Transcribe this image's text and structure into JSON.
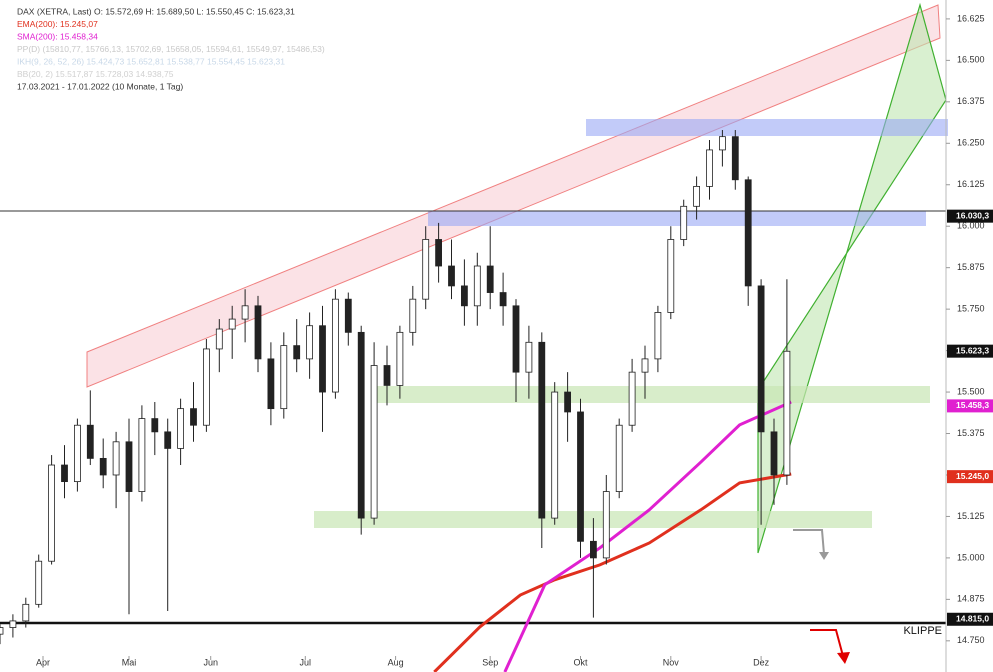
{
  "chart_data": {
    "type": "candlestick",
    "header": [
      {
        "text": "DAX (XETRA, Last)  O: 15.572,69  H: 15.689,50  L: 15.550,45  C: 15.623,31",
        "color": "#333333"
      },
      {
        "text": "EMA(200): 15.245,07",
        "color": "#e0301e"
      },
      {
        "text": "SMA(200): 15.458,34",
        "color": "#e020d0"
      },
      {
        "text": "PP(D) (15810,77, 15766,13, 15702,69, 15658,05, 15594,61, 15549,97, 15486,53)",
        "color": "#c8c8c8"
      },
      {
        "text": "IKH(9, 26, 52, 26) 15.424,73  15.652,81  15.538,77  15.554,45  15.623,31",
        "color": "#c8d8e8"
      },
      {
        "text": "BB(20, 2) 15.517,87  15.728,03  14.938,75",
        "color": "#d0d0d0"
      },
      {
        "text": "17.03.2021 - 17.01.2022 (10 Monate, 1 Tag)",
        "color": "#333333"
      }
    ],
    "x": [
      0,
      3,
      6,
      9,
      12,
      15,
      18,
      21,
      24,
      27,
      30,
      33,
      36,
      39,
      42,
      45,
      48,
      51,
      54,
      57,
      60,
      63,
      66,
      69,
      72,
      75,
      78,
      81,
      84,
      87,
      90,
      93,
      96,
      99,
      102,
      105,
      108,
      111,
      114,
      117,
      120,
      123,
      126,
      129,
      132,
      135,
      138,
      141,
      144,
      147,
      150,
      153,
      156,
      159,
      162,
      165,
      168,
      171,
      174,
      177,
      180,
      183
    ],
    "open": [
      14770,
      14790,
      14810,
      14860,
      14990,
      15280,
      15230,
      15400,
      15300,
      15250,
      15350,
      15200,
      15420,
      15380,
      15330,
      15450,
      15400,
      15630,
      15690,
      15720,
      15760,
      15600,
      15450,
      15640,
      15600,
      15700,
      15500,
      15780,
      15680,
      15120,
      15580,
      15520,
      15680,
      15780,
      15960,
      15880,
      15820,
      15760,
      15880,
      15800,
      15760,
      15560,
      15650,
      15120,
      15500,
      15440,
      15050,
      15000,
      15200,
      15400,
      15560,
      15600,
      15740,
      15960,
      16060,
      16120,
      16230,
      16270,
      16140,
      15820,
      15380,
      15250
    ],
    "high": [
      14800,
      14830,
      14880,
      15010,
      15310,
      15340,
      15420,
      15505,
      15360,
      15380,
      15420,
      15460,
      15470,
      15420,
      15480,
      15530,
      15660,
      15720,
      15760,
      15810,
      15790,
      15650,
      15680,
      15720,
      15740,
      15760,
      15810,
      15800,
      15700,
      15650,
      15640,
      15700,
      15820,
      16000,
      16010,
      15960,
      15900,
      15920,
      16000,
      15860,
      15780,
      15700,
      15680,
      15530,
      15560,
      15480,
      15120,
      15250,
      15420,
      15600,
      15640,
      15760,
      16000,
      16080,
      16150,
      16260,
      16290,
      16290,
      16150,
      15840,
      15420,
      15840
    ],
    "low": [
      14740,
      14760,
      14790,
      14850,
      14980,
      15180,
      15200,
      15280,
      15210,
      15150,
      14830,
      15170,
      15310,
      14840,
      15280,
      15350,
      15380,
      15560,
      15600,
      15650,
      15560,
      15400,
      15420,
      15560,
      15540,
      15380,
      15480,
      15640,
      15070,
      15100,
      15460,
      15480,
      15640,
      15750,
      15830,
      15780,
      15700,
      15700,
      15750,
      15700,
      15470,
      15480,
      15030,
      15100,
      15350,
      15000,
      14820,
      14980,
      15180,
      15380,
      15480,
      15560,
      15720,
      15940,
      16020,
      16080,
      16180,
      16110,
      15760,
      15100,
      15160,
      15220
    ],
    "close": [
      14790,
      14810,
      14860,
      14990,
      15280,
      15230,
      15400,
      15300,
      15250,
      15350,
      15200,
      15420,
      15380,
      15330,
      15450,
      15400,
      15630,
      15690,
      15720,
      15760,
      15600,
      15450,
      15640,
      15600,
      15700,
      15500,
      15780,
      15680,
      15120,
      15580,
      15520,
      15680,
      15780,
      15960,
      15880,
      15820,
      15760,
      15880,
      15800,
      15760,
      15560,
      15650,
      15120,
      15500,
      15440,
      15050,
      15000,
      15200,
      15400,
      15560,
      15600,
      15740,
      15960,
      16060,
      16120,
      16230,
      16270,
      16140,
      15820,
      15380,
      15250,
      15623
    ],
    "series": [
      {
        "name": "EMA(200)",
        "color": "#e0301e",
        "x": [
          101,
          111.6,
          121,
          129,
          139.5,
          151,
          163,
          172,
          184
        ],
        "values": [
          14656,
          14792,
          14888,
          14934,
          14979,
          15045,
          15145,
          15226,
          15253
        ]
      },
      {
        "name": "SMA(200)",
        "color": "#e020d0",
        "x": [
          117.4,
          126.7,
          139.5,
          151,
          163,
          172,
          184
        ],
        "values": [
          14656,
          14919,
          15030,
          15145,
          15289,
          15401,
          15470
        ]
      }
    ],
    "xlim": [
      0,
      220
    ],
    "ylim": [
      14656,
      16682
    ],
    "xticks": [
      {
        "value": 10,
        "label": "Apr"
      },
      {
        "value": 30,
        "label": "Mai"
      },
      {
        "value": 49,
        "label": "Jun"
      },
      {
        "value": 71,
        "label": "Jul"
      },
      {
        "value": 92,
        "label": "Aug"
      },
      {
        "value": 114,
        "label": "Sep"
      },
      {
        "value": 135,
        "label": "Okt"
      },
      {
        "value": 156,
        "label": "Nov"
      },
      {
        "value": 177,
        "label": "Dez"
      }
    ],
    "yticks": [
      {
        "value": 16625,
        "label": "16.625"
      },
      {
        "value": 16500,
        "label": "16.500"
      },
      {
        "value": 16375,
        "label": "16.375"
      },
      {
        "value": 16250,
        "label": "16.250"
      },
      {
        "value": 16125,
        "label": "16.125"
      },
      {
        "value": 16000,
        "label": "16.000"
      },
      {
        "value": 15875,
        "label": "15.875"
      },
      {
        "value": 15750,
        "label": "15.750"
      },
      {
        "value": 15625,
        "label": "15.625"
      },
      {
        "value": 15500,
        "label": "15.500"
      },
      {
        "value": 15375,
        "label": "15.375"
      },
      {
        "value": 15250,
        "label": "15.250"
      },
      {
        "value": 15125,
        "label": "15.125"
      },
      {
        "value": 15000,
        "label": "15.000"
      },
      {
        "value": 14875,
        "label": "14.875"
      },
      {
        "value": 14750,
        "label": "14.750"
      }
    ],
    "price_labels": [
      {
        "value": 16030.3,
        "label": "16.030,3",
        "color": "#111111"
      },
      {
        "value": 15623.3,
        "label": "15.623,3",
        "color": "#111111"
      },
      {
        "value": 15458.3,
        "label": "15.458,3",
        "color": "#e020d0"
      },
      {
        "value": 15245.0,
        "label": "15.245,0",
        "color": "#e0301e"
      },
      {
        "value": 14815.0,
        "label": "14.815,0",
        "color": "#111111"
      }
    ],
    "annotation": "KLIPPE"
  }
}
